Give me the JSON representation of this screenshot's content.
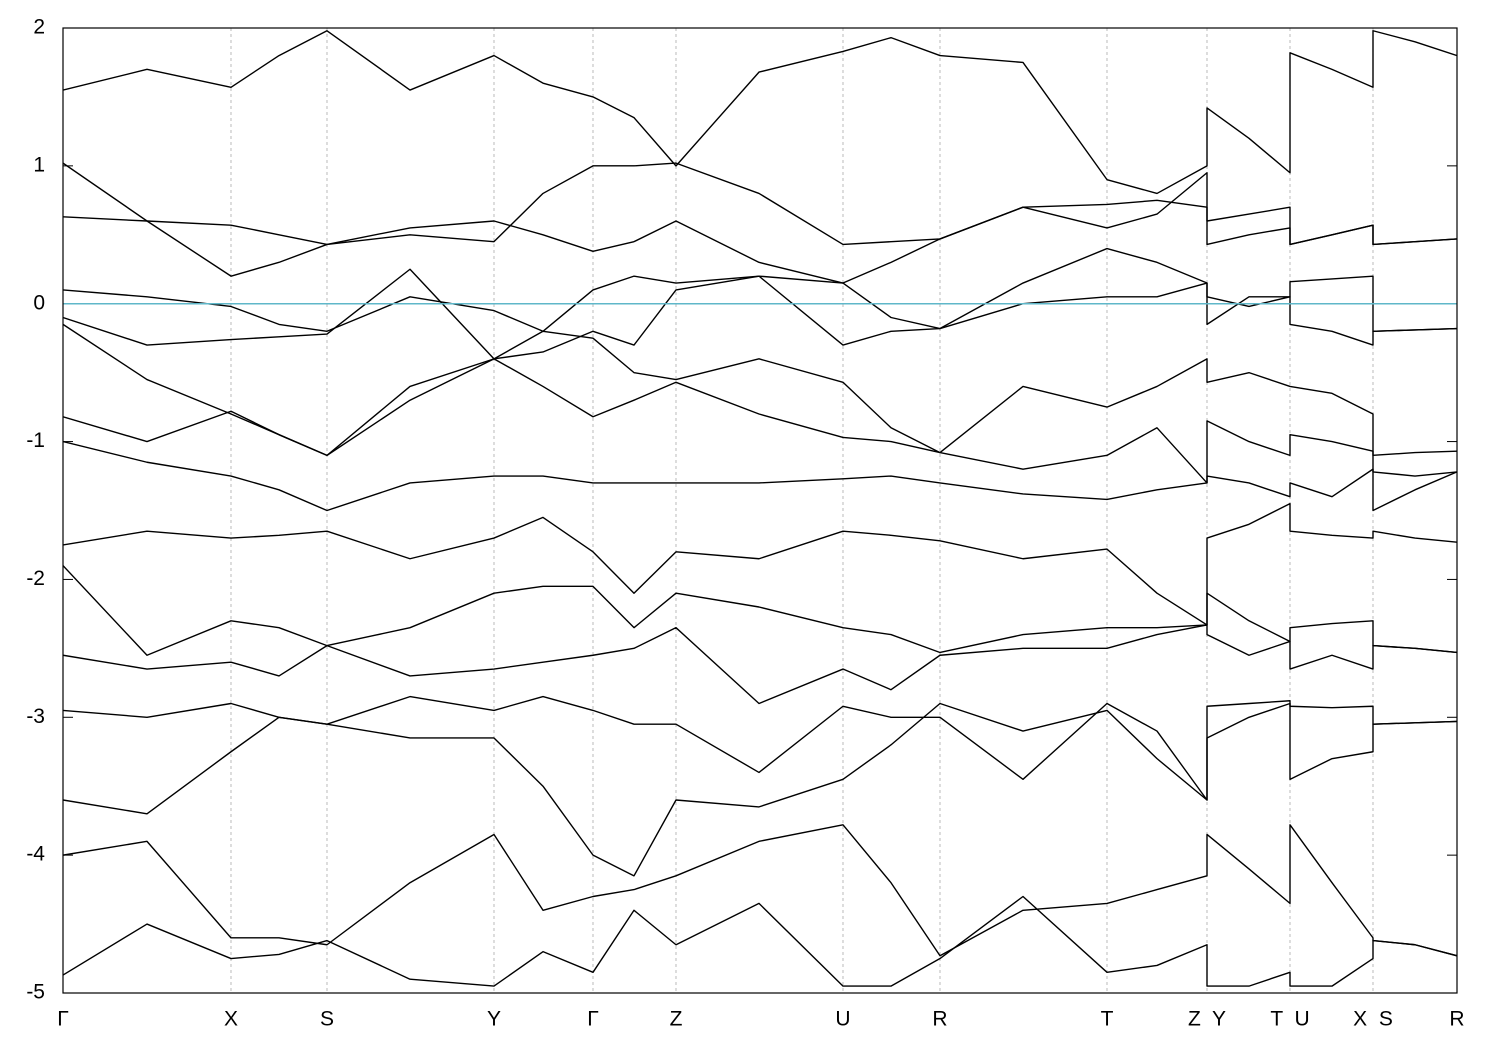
{
  "chart_data": {
    "type": "line",
    "x": [
      0,
      0.84,
      1.68,
      2.16,
      2.64,
      3.47,
      4.31,
      4.8,
      5.3,
      5.71,
      6.13,
      6.96,
      7.8,
      8.28,
      8.77,
      9.6,
      10.44,
      10.94,
      11.44,
      11.44,
      11.86,
      12.27,
      12.27,
      12.69,
      13.1,
      13.1,
      13.52,
      13.94
    ],
    "xlim": [
      0,
      13.94
    ],
    "ylim": [
      -5,
      2
    ],
    "xticks": [
      {
        "value": 0,
        "label": "Γ"
      },
      {
        "value": 1.68,
        "label": "X"
      },
      {
        "value": 2.64,
        "label": "S"
      },
      {
        "value": 4.31,
        "label": "Y"
      },
      {
        "value": 5.3,
        "label": "Γ"
      },
      {
        "value": 6.13,
        "label": "Z"
      },
      {
        "value": 7.8,
        "label": "U"
      },
      {
        "value": 8.77,
        "label": "R"
      },
      {
        "value": 10.44,
        "label": "T"
      },
      {
        "value": 11.44,
        "label": "Z  Y"
      },
      {
        "value": 12.27,
        "label": "T  U"
      },
      {
        "value": 13.1,
        "label": "X  S"
      },
      {
        "value": 13.94,
        "label": "R"
      }
    ],
    "yticks": [
      2,
      1,
      0,
      -1,
      -2,
      -3,
      -4,
      -5
    ],
    "grid": true,
    "line_color": "#000000",
    "fermi_level": 0,
    "fermi_color": "#5fb7c9",
    "series": [
      {
        "values": [
          1.55,
          1.7,
          1.57,
          1.8,
          1.98,
          1.55,
          1.8,
          1.6,
          1.5,
          1.35,
          1.0,
          1.68,
          1.83,
          1.93,
          1.8,
          1.75,
          0.9,
          0.8,
          1.0,
          1.42,
          1.2,
          0.95,
          1.82,
          1.7,
          1.57,
          1.98,
          1.9,
          1.8
        ]
      },
      {
        "values": [
          1.02,
          0.6,
          0.2,
          0.3,
          0.43,
          0.5,
          0.45,
          0.8,
          1.0,
          1.0,
          1.02,
          0.8,
          0.43,
          0.45,
          0.47,
          0.7,
          0.55,
          0.65,
          0.95,
          0.43,
          0.5,
          0.55,
          0.43,
          0.5,
          0.57,
          0.43,
          0.45,
          0.47
        ]
      },
      {
        "values": [
          0.63,
          0.6,
          0.57,
          0.5,
          0.43,
          0.55,
          0.6,
          0.5,
          0.38,
          0.45,
          0.6,
          0.3,
          0.15,
          0.3,
          0.47,
          0.7,
          0.72,
          0.75,
          0.7,
          0.6,
          0.65,
          0.7,
          0.43,
          0.5,
          0.57,
          0.43,
          0.45,
          0.47
        ]
      },
      {
        "values": [
          0.1,
          0.05,
          -0.02,
          -0.15,
          -0.2,
          0.05,
          -0.05,
          -0.2,
          0.1,
          0.2,
          0.15,
          0.2,
          -0.3,
          -0.2,
          -0.18,
          0.15,
          0.4,
          0.3,
          0.15,
          0.05,
          -0.02,
          0.05,
          0.16,
          0.18,
          0.2,
          -0.2,
          -0.19,
          -0.18
        ]
      },
      {
        "values": [
          -0.15,
          -0.55,
          -0.8,
          -0.95,
          -1.1,
          -0.6,
          -0.4,
          -0.35,
          -0.2,
          -0.3,
          0.1,
          0.2,
          0.15,
          -0.1,
          -0.18,
          0.0,
          0.05,
          0.05,
          0.15,
          -0.15,
          0.05,
          0.05,
          -0.15,
          -0.2,
          -0.3,
          -0.2,
          -0.19,
          -0.18
        ]
      },
      {
        "values": [
          -0.1,
          -0.3,
          -0.26,
          -0.24,
          -0.22,
          0.25,
          -0.4,
          -0.2,
          -0.25,
          -0.5,
          -0.55,
          -0.4,
          -0.57,
          -0.9,
          -1.08,
          -0.6,
          -0.75,
          -0.6,
          -0.4,
          -0.57,
          -0.5,
          -0.6,
          -0.6,
          -0.65,
          -0.8,
          -1.1,
          -1.08,
          -1.07
        ]
      },
      {
        "values": [
          -0.82,
          -1.0,
          -0.78,
          -0.95,
          -1.1,
          -0.7,
          -0.4,
          -0.6,
          -0.82,
          -0.7,
          -0.57,
          -0.8,
          -0.97,
          -1.0,
          -1.08,
          -1.2,
          -1.1,
          -0.9,
          -1.3,
          -0.85,
          -1.0,
          -1.1,
          -0.95,
          -1.0,
          -1.07,
          -1.22,
          -1.25,
          -1.22
        ]
      },
      {
        "values": [
          -1.0,
          -1.15,
          -1.25,
          -1.35,
          -1.5,
          -1.3,
          -1.25,
          -1.25,
          -1.3,
          -1.3,
          -1.3,
          -1.3,
          -1.27,
          -1.25,
          -1.3,
          -1.38,
          -1.42,
          -1.35,
          -1.3,
          -1.25,
          -1.3,
          -1.4,
          -1.3,
          -1.4,
          -1.2,
          -1.5,
          -1.35,
          -1.22
        ]
      },
      {
        "values": [
          -1.75,
          -1.65,
          -1.7,
          -1.68,
          -1.65,
          -1.85,
          -1.7,
          -1.55,
          -1.8,
          -2.1,
          -1.8,
          -1.85,
          -1.65,
          -1.68,
          -1.72,
          -1.85,
          -1.78,
          -2.1,
          -2.33,
          -1.7,
          -1.6,
          -1.45,
          -1.65,
          -1.68,
          -1.7,
          -1.65,
          -1.7,
          -1.73
        ]
      },
      {
        "values": [
          -1.9,
          -2.55,
          -2.3,
          -2.35,
          -2.48,
          -2.35,
          -2.1,
          -2.05,
          -2.05,
          -2.35,
          -2.1,
          -2.2,
          -2.35,
          -2.4,
          -2.53,
          -2.4,
          -2.35,
          -2.35,
          -2.33,
          -2.1,
          -2.3,
          -2.45,
          -2.35,
          -2.32,
          -2.3,
          -2.48,
          -2.5,
          -2.53
        ]
      },
      {
        "values": [
          -2.55,
          -2.65,
          -2.6,
          -2.7,
          -2.48,
          -2.7,
          -2.65,
          -2.6,
          -2.55,
          -2.5,
          -2.35,
          -2.9,
          -2.65,
          -2.8,
          -2.55,
          -2.5,
          -2.5,
          -2.4,
          -2.33,
          -2.4,
          -2.55,
          -2.45,
          -2.65,
          -2.55,
          -2.65,
          -2.48,
          -2.5,
          -2.53
        ]
      },
      {
        "values": [
          -2.95,
          -3.0,
          -2.9,
          -3.0,
          -3.05,
          -2.85,
          -2.95,
          -2.85,
          -2.95,
          -3.05,
          -3.05,
          -3.4,
          -2.92,
          -3.0,
          -3.0,
          -3.45,
          -2.9,
          -3.1,
          -3.6,
          -2.92,
          -2.9,
          -2.88,
          -2.92,
          -2.93,
          -2.92,
          -3.05,
          -3.04,
          -3.03
        ]
      },
      {
        "values": [
          -3.6,
          -3.7,
          -3.25,
          -3.0,
          -3.05,
          -3.15,
          -3.15,
          -3.5,
          -4.0,
          -4.15,
          -3.6,
          -3.65,
          -3.45,
          -3.2,
          -2.9,
          -3.1,
          -2.95,
          -3.3,
          -3.6,
          -3.15,
          -3.0,
          -2.9,
          -3.45,
          -3.3,
          -3.25,
          -3.05,
          -3.04,
          -3.03
        ]
      },
      {
        "values": [
          -4.0,
          -3.9,
          -4.6,
          -4.6,
          -4.65,
          -4.2,
          -3.85,
          -4.4,
          -4.3,
          -4.25,
          -4.15,
          -3.9,
          -3.78,
          -4.2,
          -4.73,
          -4.4,
          -4.35,
          -4.25,
          -4.15,
          -3.85,
          -4.1,
          -4.35,
          -3.78,
          -4.2,
          -4.6,
          -4.62,
          -4.65,
          -4.73
        ]
      },
      {
        "values": [
          -4.87,
          -4.5,
          -4.75,
          -4.72,
          -4.62,
          -4.9,
          -4.95,
          -4.7,
          -4.85,
          -4.4,
          -4.65,
          -4.35,
          -4.95,
          -4.95,
          -4.75,
          -4.3,
          -4.85,
          -4.8,
          -4.65,
          -4.95,
          -4.95,
          -4.85,
          -4.95,
          -4.95,
          -4.75,
          -4.62,
          -4.65,
          -4.73
        ]
      }
    ]
  }
}
